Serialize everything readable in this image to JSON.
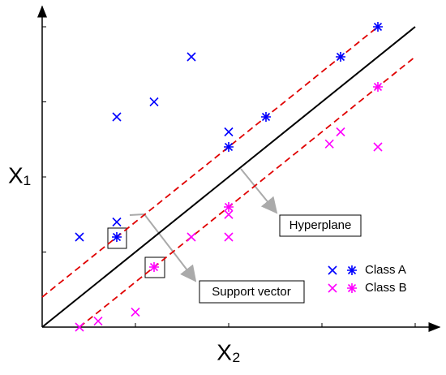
{
  "chart_data": {
    "type": "scatter",
    "x_label": "X₂",
    "y_label": "X₁",
    "xlim": [
      0,
      10
    ],
    "ylim": [
      0,
      10
    ],
    "xticks": [
      2.5,
      5,
      7.5,
      10
    ],
    "yticks": [
      2.5,
      5,
      7.5,
      10
    ],
    "legend": "lower right",
    "series": [
      {
        "name": "Class A",
        "color": "#0000ff",
        "x": [
          1,
          2,
          3,
          4,
          5,
          2
        ],
        "values": [
          3,
          7,
          7.5,
          9,
          6.5,
          3.5
        ],
        "x_star": [
          2,
          5,
          6,
          8,
          9
        ],
        "values_star": [
          3,
          6,
          7,
          9,
          10
        ]
      },
      {
        "name": "Class B",
        "color": "#ff00ff",
        "x": [
          1,
          1.5,
          2.5,
          4,
          5,
          5,
          7.7,
          8,
          9
        ],
        "values": [
          0,
          0.2,
          0.5,
          3,
          3,
          3.75,
          6.1,
          6.5,
          6
        ],
        "x_star": [
          3,
          5,
          9
        ],
        "values_star": [
          2,
          4,
          8
        ]
      }
    ],
    "lines": [
      {
        "x": [
          0,
          10
        ],
        "values": [
          0,
          10
        ],
        "color": "#000000",
        "dashed": false
      },
      {
        "x": [
          0,
          9
        ],
        "values": [
          1,
          10
        ],
        "color": "#e00000",
        "dashed": true
      },
      {
        "x": [
          1,
          10
        ],
        "values": [
          0,
          9
        ],
        "color": "#e00000",
        "dashed": true
      }
    ],
    "annotations": [
      "Hyperplane",
      "Support vector"
    ]
  }
}
